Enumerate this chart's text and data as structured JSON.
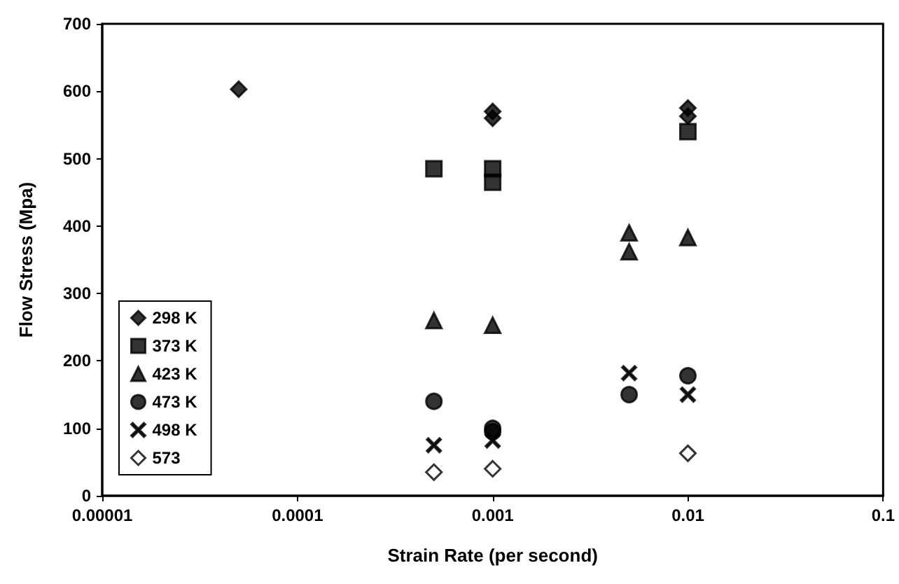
{
  "chart_data": {
    "type": "scatter",
    "xlabel": "Strain Rate (per second)",
    "ylabel": "Flow Stress (Mpa)",
    "log": "x",
    "xlim": [
      1e-05,
      0.1
    ],
    "xticks": [
      {
        "value": 1e-05,
        "label": "0.00001"
      },
      0.0001,
      0.001,
      0.01,
      0.1
    ],
    "ylim": [
      0,
      700
    ],
    "yticks": [
      0,
      100,
      200,
      300,
      400,
      500,
      600,
      700
    ],
    "grid": false,
    "legend": "left",
    "series": [
      {
        "name": "298 K",
        "color": "#000000",
        "marker": "diamond",
        "x": [
          5e-05,
          0.001,
          0.001,
          0.01,
          0.01
        ],
        "values": [
          603,
          570,
          560,
          575,
          563
        ]
      },
      {
        "name": "373 K",
        "color": "#000000",
        "marker": "square",
        "x": [
          0.0005,
          0.001,
          0.001,
          0.01
        ],
        "values": [
          485,
          485,
          465,
          540
        ]
      },
      {
        "name": "423 K",
        "color": "#000000",
        "marker": "triangle",
        "x": [
          0.0005,
          0.001,
          0.005,
          0.005,
          0.01
        ],
        "values": [
          260,
          253,
          390,
          362,
          383
        ]
      },
      {
        "name": "473 K",
        "color": "#000000",
        "marker": "circle",
        "x": [
          0.0005,
          0.001,
          0.001,
          0.005,
          0.01
        ],
        "values": [
          140,
          100,
          95,
          150,
          178
        ]
      },
      {
        "name": "498 K",
        "color": "#000000",
        "marker": "cross",
        "x": [
          0.0005,
          0.001,
          0.005,
          0.01
        ],
        "values": [
          75,
          82,
          182,
          150
        ]
      },
      {
        "name": "573",
        "color": "#ffffff",
        "marker": "diamond",
        "x": [
          0.0005,
          0.001,
          0.01
        ],
        "values": [
          35,
          40,
          63
        ]
      }
    ]
  }
}
